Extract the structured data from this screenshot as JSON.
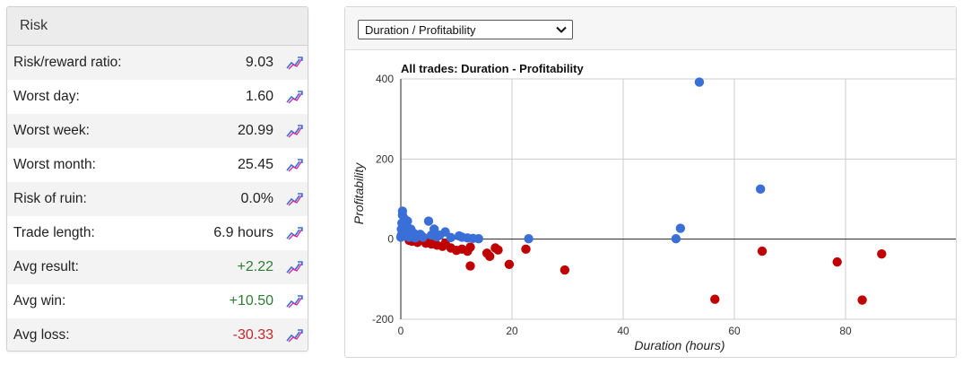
{
  "risk": {
    "title": "Risk",
    "rows": [
      {
        "label": "Risk/reward ratio:",
        "value": "9.03",
        "tone": "neutral"
      },
      {
        "label": "Worst day:",
        "value": "1.60",
        "tone": "neutral"
      },
      {
        "label": "Worst week:",
        "value": "20.99",
        "tone": "neutral"
      },
      {
        "label": "Worst month:",
        "value": "25.45",
        "tone": "neutral"
      },
      {
        "label": "Risk of ruin:",
        "value": "0.0%",
        "tone": "neutral"
      },
      {
        "label": "Trade length:",
        "value": "6.9 hours",
        "tone": "neutral"
      },
      {
        "label": "Avg result:",
        "value": "+2.22",
        "tone": "positive"
      },
      {
        "label": "Avg win:",
        "value": "+10.50",
        "tone": "positive"
      },
      {
        "label": "Avg loss:",
        "value": "-30.33",
        "tone": "negative"
      }
    ],
    "row_icon": "chart-line-icon"
  },
  "chart_panel": {
    "selector_value": "Duration / Profitability",
    "selector_icon": "chevron-down-icon"
  },
  "colors": {
    "positive_point": "#3a6fd8",
    "negative_point": "#c00000",
    "positive_text": "#2e7d32",
    "negative_text": "#c62828",
    "grid": "#cccccc"
  },
  "chart_data": {
    "type": "scatter",
    "title": "All trades: Duration - Profitability",
    "xlabel": "Duration (hours)",
    "ylabel": "Profitability",
    "xlim": [
      0,
      100
    ],
    "ylim": [
      -200,
      400
    ],
    "xticks": [
      0,
      20,
      40,
      60,
      80
    ],
    "yticks": [
      -200,
      0,
      200,
      400
    ],
    "grid": true,
    "series": [
      {
        "kind": "win",
        "color": "#3a6fd8",
        "points": [
          [
            0.0,
            5
          ],
          [
            0.1,
            10
          ],
          [
            0.1,
            25
          ],
          [
            0.2,
            40
          ],
          [
            0.3,
            70
          ],
          [
            0.3,
            60
          ],
          [
            0.4,
            15
          ],
          [
            0.5,
            35
          ],
          [
            0.6,
            20
          ],
          [
            0.7,
            50
          ],
          [
            0.8,
            8
          ],
          [
            0.9,
            30
          ],
          [
            1.0,
            12
          ],
          [
            1.2,
            45
          ],
          [
            1.4,
            18
          ],
          [
            1.5,
            5
          ],
          [
            1.8,
            25
          ],
          [
            2.0,
            10
          ],
          [
            2.3,
            15
          ],
          [
            2.6,
            3
          ],
          [
            3.0,
            8
          ],
          [
            3.5,
            12
          ],
          [
            4.0,
            5
          ],
          [
            5.0,
            45
          ],
          [
            5.5,
            10
          ],
          [
            6.0,
            25
          ],
          [
            6.5,
            6
          ],
          [
            7.0,
            10
          ],
          [
            8.0,
            18
          ],
          [
            9.0,
            4
          ],
          [
            10.5,
            8
          ],
          [
            11.0,
            5
          ],
          [
            12.0,
            3
          ],
          [
            13.0,
            2
          ],
          [
            14.0,
            1
          ],
          [
            23.0,
            1
          ],
          [
            49.5,
            1
          ],
          [
            50.3,
            27
          ],
          [
            53.7,
            392
          ],
          [
            64.7,
            125
          ]
        ]
      },
      {
        "kind": "loss",
        "color": "#c00000",
        "points": [
          [
            1.5,
            -3
          ],
          [
            2.0,
            -5
          ],
          [
            3.0,
            -8
          ],
          [
            4.5,
            -10
          ],
          [
            5.0,
            -7
          ],
          [
            5.5,
            -12
          ],
          [
            6.5,
            -15
          ],
          [
            7.5,
            -18
          ],
          [
            8.0,
            -10
          ],
          [
            9.0,
            -22
          ],
          [
            10.0,
            -28
          ],
          [
            11.0,
            -25
          ],
          [
            12.0,
            -30
          ],
          [
            12.5,
            -20
          ],
          [
            12.5,
            -67
          ],
          [
            15.5,
            -35
          ],
          [
            16.0,
            -43
          ],
          [
            17.0,
            -22
          ],
          [
            17.5,
            -27
          ],
          [
            19.5,
            -63
          ],
          [
            22.5,
            -25
          ],
          [
            29.5,
            -77
          ],
          [
            56.5,
            -150
          ],
          [
            65.0,
            -30
          ],
          [
            78.5,
            -57
          ],
          [
            83.0,
            -152
          ],
          [
            86.5,
            -37
          ]
        ]
      }
    ]
  }
}
